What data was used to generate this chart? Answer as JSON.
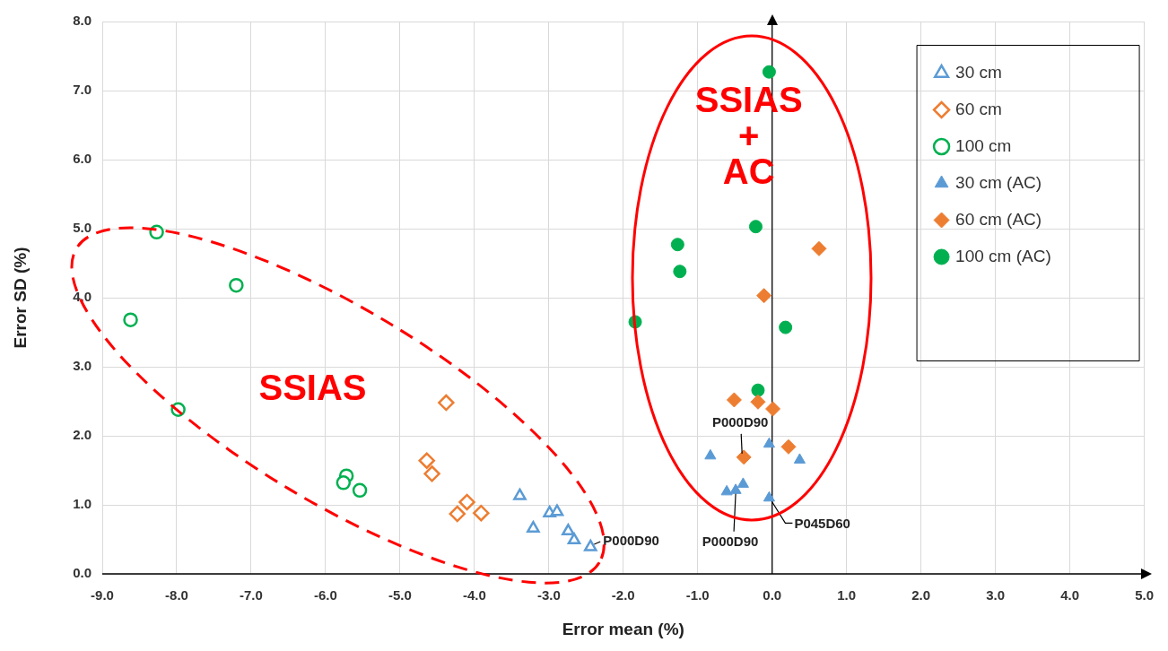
{
  "chart_data": {
    "type": "scatter",
    "xlabel": "Error mean (%)",
    "ylabel": "Error SD (%)",
    "xlim": [
      -9,
      5
    ],
    "xticks": [
      {
        "value": -9,
        "label": "-9.0"
      },
      {
        "value": -8,
        "label": "-8.0"
      },
      {
        "value": -7,
        "label": "-7.0"
      },
      {
        "value": -6,
        "label": "-6.0"
      },
      {
        "value": -5,
        "label": "-5.0"
      },
      {
        "value": -4,
        "label": "-4.0"
      },
      {
        "value": -3,
        "label": "-3.0"
      },
      {
        "value": -2,
        "label": "-2.0"
      },
      {
        "value": -1,
        "label": "-1.0"
      },
      {
        "value": 0,
        "label": "0.0"
      },
      {
        "value": 1,
        "label": "1.0"
      },
      {
        "value": 2,
        "label": "2.0"
      },
      {
        "value": 3,
        "label": "3.0"
      },
      {
        "value": 4,
        "label": "4.0"
      },
      {
        "value": 5,
        "label": "5.0"
      }
    ],
    "ylim": [
      0,
      8
    ],
    "yticks": [
      {
        "value": 0,
        "label": "0.0"
      },
      {
        "value": 1,
        "label": "1.0"
      },
      {
        "value": 2,
        "label": "2.0"
      },
      {
        "value": 3,
        "label": "3.0"
      },
      {
        "value": 4,
        "label": "4.0"
      },
      {
        "value": 5,
        "label": "5.0"
      },
      {
        "value": 6,
        "label": "6.0"
      },
      {
        "value": 7,
        "label": "7.0"
      },
      {
        "value": 8,
        "label": "8.0"
      }
    ],
    "grid": true,
    "legend": "top right",
    "series": [
      {
        "name": "30 cm",
        "color": "#5b9bd5",
        "marker": "triangle-open",
        "x": [
          -3.39,
          -3.21,
          -2.99,
          -2.89,
          -2.74,
          -2.66,
          -2.44
        ],
        "values": [
          1.13,
          0.66,
          0.88,
          0.9,
          0.62,
          0.49,
          0.39
        ]
      },
      {
        "name": "60 cm",
        "color": "#ed7d31",
        "marker": "diamond-open",
        "x": [
          -4.38,
          -4.64,
          -4.57,
          -4.1,
          -4.23,
          -3.91
        ],
        "values": [
          2.48,
          1.64,
          1.45,
          1.04,
          0.87,
          0.88
        ]
      },
      {
        "name": "100 cm",
        "color": "#00b050",
        "marker": "circle-open",
        "x": [
          -8.27,
          -7.2,
          -8.62,
          -7.98,
          -5.72,
          -5.76,
          -5.54
        ],
        "values": [
          4.95,
          4.18,
          3.68,
          2.38,
          1.42,
          1.32,
          1.21
        ]
      },
      {
        "name": "30 cm (AC)",
        "color": "#5b9bd5",
        "marker": "triangle",
        "x": [
          -0.04,
          -0.83,
          0.37,
          -0.61,
          -0.49,
          -0.39,
          -0.04
        ],
        "values": [
          1.88,
          1.71,
          1.65,
          1.19,
          1.21,
          1.3,
          1.1
        ]
      },
      {
        "name": "60 cm (AC)",
        "color": "#ed7d31",
        "marker": "diamond",
        "x": [
          0.63,
          -0.11,
          -0.51,
          -0.19,
          0.01,
          0.22,
          -0.38
        ],
        "values": [
          4.71,
          4.03,
          2.52,
          2.49,
          2.39,
          1.84,
          1.69
        ]
      },
      {
        "name": "100 cm (AC)",
        "color": "#00b050",
        "marker": "circle",
        "x": [
          -0.04,
          -0.22,
          -1.27,
          -1.24,
          -1.84,
          0.18,
          -0.19
        ],
        "values": [
          7.27,
          5.03,
          4.77,
          4.38,
          3.65,
          3.57,
          2.66
        ]
      }
    ],
    "annotations": [
      "SSIAS",
      "SSIAS + AC",
      {
        "text": "P000D90",
        "x": -2.44,
        "y": 0.39
      },
      {
        "text": "P000D90",
        "x": -0.38,
        "y": 1.69
      },
      {
        "text": "P000D90",
        "x": -0.49,
        "y": 1.21
      },
      {
        "text": "P045D60",
        "x": -0.04,
        "y": 1.1
      }
    ]
  }
}
